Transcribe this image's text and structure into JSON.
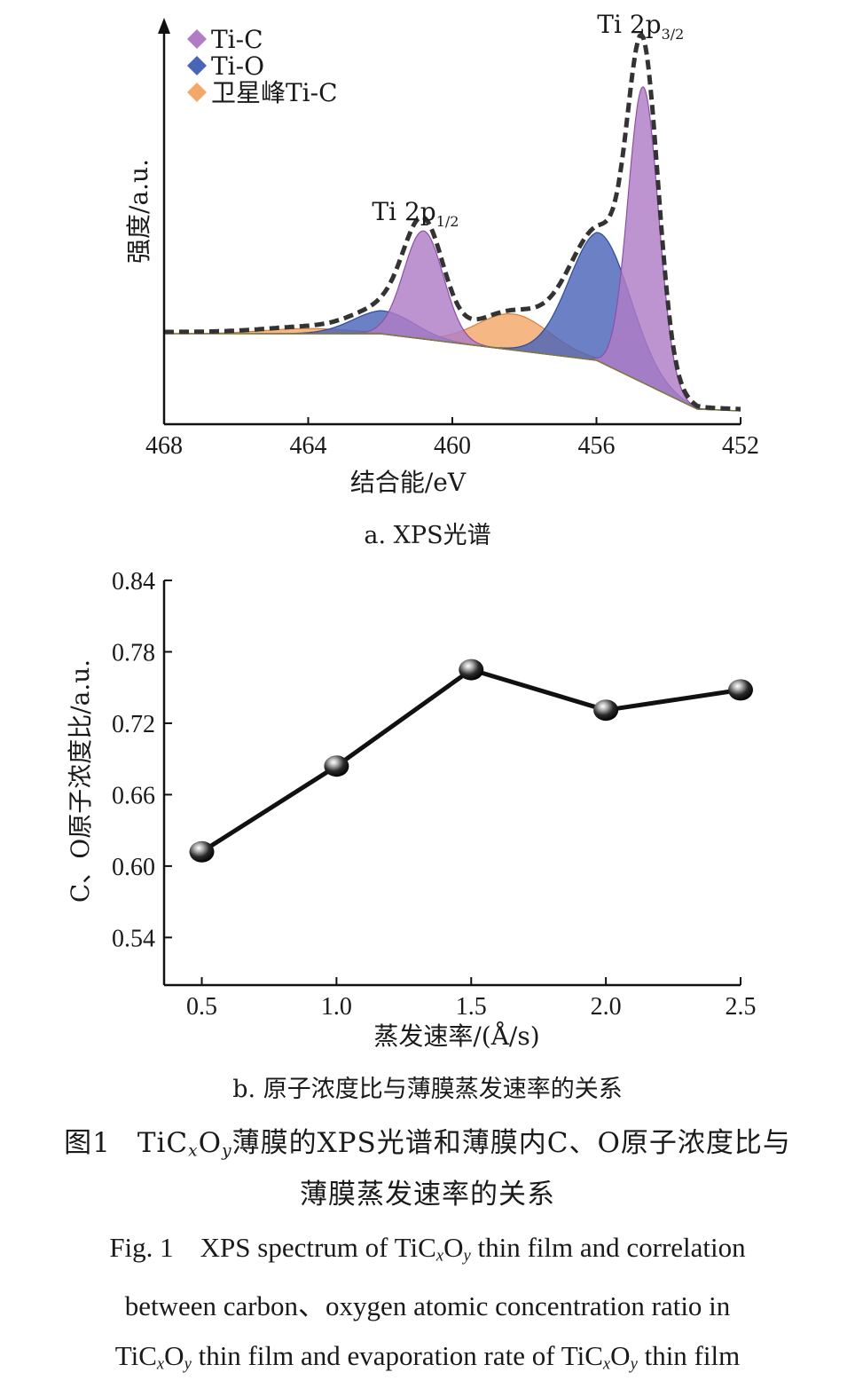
{
  "chart_data": [
    {
      "type": "area",
      "subcaption": "a. XPS光谱",
      "xlabel": "结合能/eV",
      "ylabel": "强度/a.u.",
      "x_reversed": true,
      "xlim": [
        468,
        452
      ],
      "x_ticks": [
        "468",
        "464",
        "460",
        "456",
        "452"
      ],
      "legend": [
        {
          "name": "Ti-C",
          "color": "#b07cc6"
        },
        {
          "name": "Ti-O",
          "color": "#4a64b8"
        },
        {
          "name": "卫星峰Ti-C",
          "color": "#f3a86a"
        }
      ],
      "annotations": [
        {
          "text": "Ti 2p",
          "sub": "1/2",
          "x": 460.9
        },
        {
          "text": "Ti 2p",
          "sub": "3/2",
          "x": 454.7
        }
      ],
      "peaks": [
        {
          "series": "Ti-C",
          "center": 460.8,
          "height": 0.42,
          "width": 0.55
        },
        {
          "series": "Ti-C",
          "center": 454.7,
          "height": 1.15,
          "width": 0.42
        },
        {
          "series": "Ti-O",
          "center": 461.9,
          "height": 0.09,
          "width": 0.85
        },
        {
          "series": "Ti-O",
          "center": 455.9,
          "height": 0.5,
          "width": 0.85
        },
        {
          "series": "卫星峰Ti-C",
          "center": 464.0,
          "height": 0.02,
          "width": 1.2
        },
        {
          "series": "卫星峰Ti-C",
          "center": 458.3,
          "height": 0.14,
          "width": 1.0
        }
      ],
      "envelope": "dashed"
    },
    {
      "type": "line",
      "subcaption": "b. 原子浓度比与薄膜蒸发速率的关系",
      "xlabel": "蒸发速率/(Å/s)",
      "ylabel": "C、O原子浓度比/a.u.",
      "x": [
        0.5,
        1.0,
        1.5,
        2.0,
        2.5
      ],
      "x_ticks": [
        "0.5",
        "1.0",
        "1.5",
        "2.0",
        "2.5"
      ],
      "series": [
        {
          "values": [
            0.612,
            0.684,
            0.765,
            0.731,
            0.748
          ]
        }
      ],
      "ylim": [
        0.5,
        0.84
      ],
      "y_ticks": [
        "0.84",
        "0.78",
        "0.72",
        "0.66",
        "0.60",
        "0.54"
      ],
      "marker": "sphere",
      "line_color": "#111111"
    }
  ],
  "caption": {
    "zh_label": "图1",
    "zh_pre": "TiC",
    "zh_sub1": "x",
    "zh_mid": "O",
    "zh_sub2": "y",
    "zh_text": "薄膜的XPS光谱和薄膜内C、O原子浓度比与",
    "zh_line2": "薄膜蒸发速率的关系",
    "en_label": "Fig. 1",
    "en_line1_pre": "XPS spectrum of TiC",
    "en_line1_post": "thin film and correlation",
    "en_line2": "between carbon、oxygen atomic concentration ratio in",
    "en_line3_pre": "TiC",
    "en_line3_mid": "thin film and evaporation rate of TiC",
    "en_line3_post": "thin film",
    "x": "x",
    "y": "y",
    "O": "O"
  }
}
